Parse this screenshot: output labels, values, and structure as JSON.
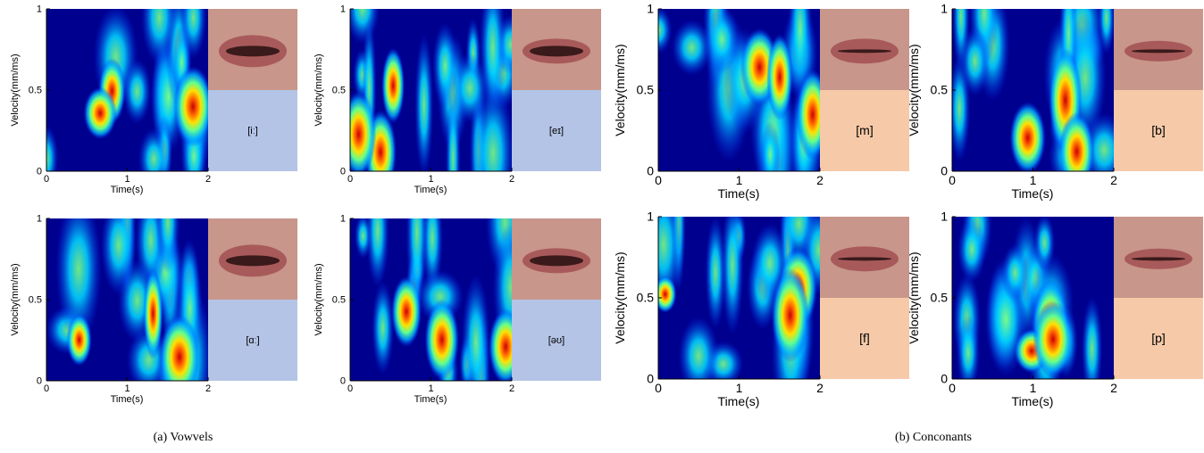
{
  "figures": [
    {
      "caption": "(a) Vowvels",
      "panels": [
        {
          "phoneme": "[iː]",
          "x_label": "Time(s)",
          "y_label": "Velocity(mm/ms)",
          "x_ticks": [
            0,
            1,
            2
          ],
          "y_ticks": [
            0,
            0.5,
            1
          ]
        },
        {
          "phoneme": "[eɪ]",
          "x_label": "Time(s)",
          "y_label": "Velocity(mm/ms)",
          "x_ticks": [
            0,
            1,
            2
          ],
          "y_ticks": [
            0,
            0.5,
            1
          ]
        },
        {
          "phoneme": "[ɑː]",
          "x_label": "Time(s)",
          "y_label": "Velocity(mm/ms)",
          "x_ticks": [
            0,
            1,
            2
          ],
          "y_ticks": [
            0,
            0.5,
            1
          ]
        },
        {
          "phoneme": "[əʊ]",
          "x_label": "Time(s)",
          "y_label": "Velocity(mm/ms)",
          "x_ticks": [
            0,
            1,
            2
          ],
          "y_ticks": [
            0,
            0.5,
            1
          ]
        }
      ]
    },
    {
      "caption": "(b) Conconants",
      "panels": [
        {
          "phoneme": "[m]",
          "x_label": "Time(s)",
          "y_label": "Velocity(mm/ms)",
          "x_ticks": [
            0,
            1,
            2
          ],
          "y_ticks": [
            0,
            0.5,
            1
          ]
        },
        {
          "phoneme": "[b]",
          "x_label": "Time(s)",
          "y_label": "Velocity(mm/ms)",
          "x_ticks": [
            0,
            1,
            2
          ],
          "y_ticks": [
            0,
            0.5,
            1
          ]
        },
        {
          "phoneme": "[f]",
          "x_label": "Time(s)",
          "y_label": "Velocity(mm/ms)",
          "x_ticks": [
            0,
            1,
            2
          ],
          "y_ticks": [
            0,
            0.5,
            1
          ]
        },
        {
          "phoneme": "[p]",
          "x_label": "Time(s)",
          "y_label": "Velocity(mm/ms)",
          "x_ticks": [
            0,
            1,
            2
          ],
          "y_ticks": [
            0,
            0.5,
            1
          ]
        }
      ]
    }
  ]
}
